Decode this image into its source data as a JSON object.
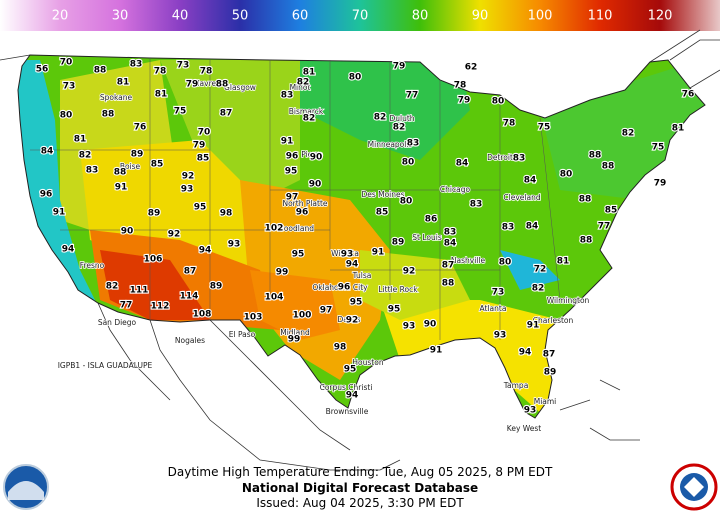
{
  "header": {
    "scale": [
      {
        "label": 20,
        "color": "#e7a0e6"
      },
      {
        "label": 30,
        "color": "#d572de"
      },
      {
        "label": 40,
        "color": "#8a3fc4"
      },
      {
        "label": 50,
        "color": "#2b2fa8"
      },
      {
        "label": 60,
        "color": "#1e7fe0"
      },
      {
        "label": 70,
        "color": "#1ec39a"
      },
      {
        "label": 80,
        "color": "#3fbf0a"
      },
      {
        "label": 90,
        "color": "#efe000"
      },
      {
        "label": 100,
        "color": "#f68a00"
      },
      {
        "label": 110,
        "color": "#e02a00"
      },
      {
        "label": 120,
        "color": "#a50a0a"
      }
    ]
  },
  "map": {
    "temps": [
      56,
      70,
      73,
      88,
      83,
      78,
      73,
      78,
      81,
      79,
      88,
      81,
      75,
      87,
      80,
      81,
      88,
      76,
      79,
      70,
      82,
      89,
      85,
      84,
      83,
      88,
      85,
      96,
      91,
      89,
      93,
      92,
      95,
      91,
      90,
      92,
      94,
      98,
      94,
      106,
      87,
      93,
      82,
      111,
      114,
      89,
      77,
      112,
      108,
      103,
      102,
      96,
      97,
      99,
      95,
      104,
      100,
      97,
      95,
      92,
      96,
      93,
      91,
      94,
      99,
      98,
      95,
      94,
      82,
      81,
      83,
      82,
      91,
      96,
      90,
      95,
      90,
      80,
      79,
      62,
      78,
      80,
      79,
      75,
      76,
      77,
      82,
      82,
      83,
      80,
      85,
      86,
      89,
      92,
      84,
      87,
      88,
      95,
      93,
      90,
      91,
      93,
      94,
      87,
      89,
      93,
      73,
      80,
      72,
      81,
      82,
      91,
      82,
      75,
      81,
      88,
      88,
      83,
      80,
      79,
      88,
      85,
      84,
      83,
      83,
      84,
      77,
      88,
      84,
      78,
      80,
      83
    ],
    "cities": [
      "Spokane",
      "Havre",
      "Glasgow",
      "Minot",
      "Bismarck",
      "Pierre",
      "Boise",
      "North Platte",
      "Goodland",
      "Wichita",
      "Tulsa",
      "Oklahoma City",
      "Little Rock",
      "Dallas",
      "Midland",
      "El Paso",
      "Nogales",
      "San Diego",
      "Fresno",
      "Houston",
      "Corpus Christi",
      "Brownsville",
      "Des Moines",
      "Minneapolis",
      "Duluth",
      "Chicago",
      "Detroit",
      "Cleveland",
      "St Louis",
      "Nashville",
      "Atlanta",
      "Charleston",
      "Wilmington",
      "Tampa",
      "Miami",
      "Key West"
    ],
    "island": "IGPB1 - ISLA GUADALUPE"
  },
  "footer": {
    "line1": "Daytime High Temperature Ending: Tue, Aug 05 2025, 8 PM EDT",
    "line2": "National Digital Forecast Database",
    "line3": "Issued: Aug 04 2025, 3:30 PM EDT"
  }
}
